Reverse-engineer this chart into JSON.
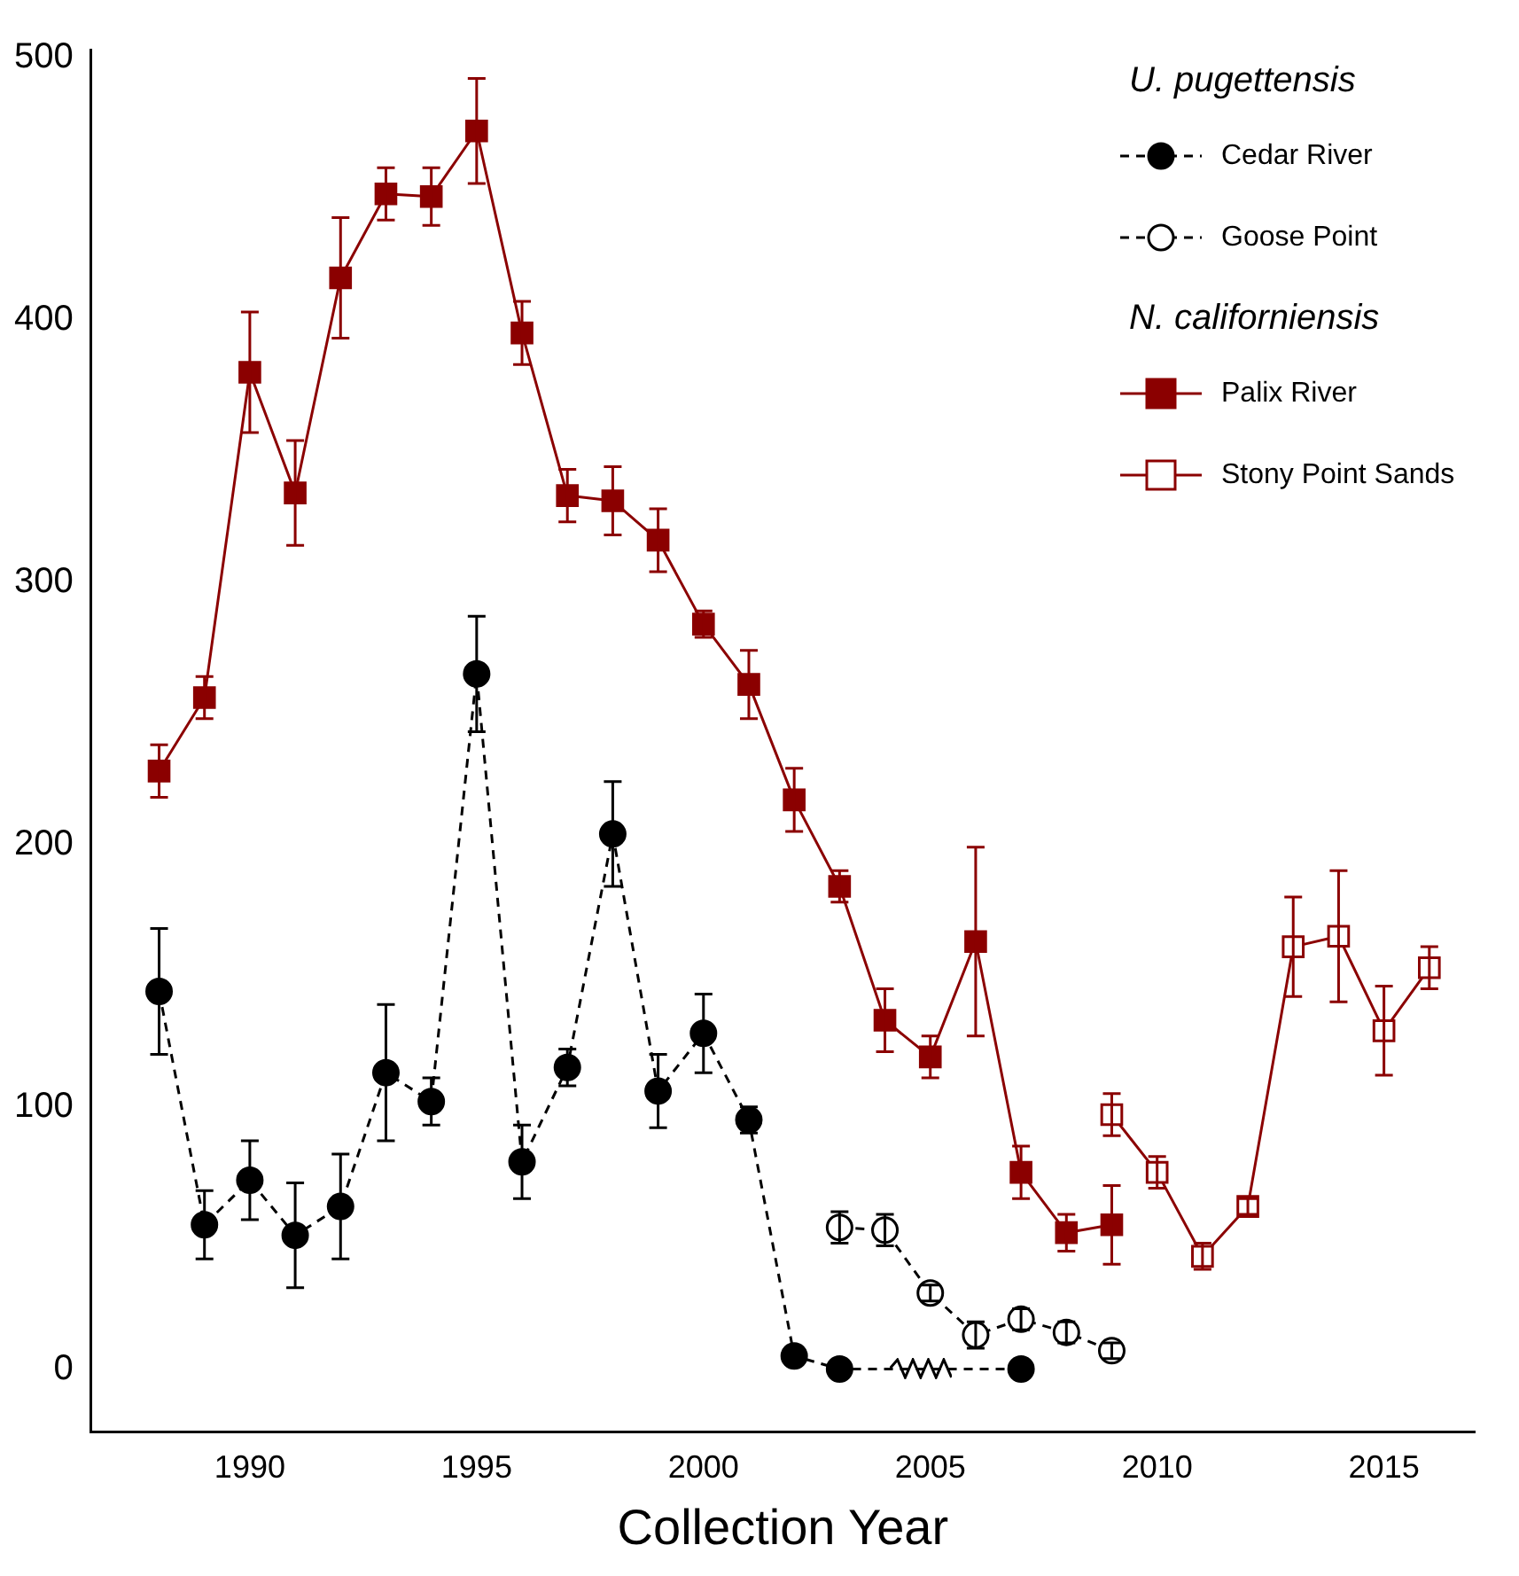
{
  "chart_data": {
    "type": "line",
    "xlabel": "Collection Year",
    "xlim": [
      1986.5,
      2017
    ],
    "xticks": [
      1990,
      1995,
      2000,
      2005,
      2010,
      2015
    ],
    "ylim": [
      -24,
      503
    ],
    "yticks": [
      0,
      100,
      200,
      300,
      400,
      500
    ],
    "grid": false,
    "legend": "top right",
    "annotations": [
      "U. pugettensis",
      "N. californiensis"
    ],
    "series": [
      {
        "name": "Cedar River",
        "color": "#000000",
        "marker": "circle",
        "line_style": "dashed",
        "x": [
          1988,
          1989,
          1990,
          1991,
          1992,
          1993,
          1994,
          1995,
          1996,
          1997,
          1998,
          1999,
          2000,
          2001,
          2002,
          2003,
          2007
        ],
        "values": [
          144,
          55,
          72,
          51,
          62,
          113,
          102,
          265,
          79,
          115,
          204,
          106,
          128,
          95,
          5,
          0,
          0
        ],
        "errors": [
          24,
          13,
          15,
          20,
          20,
          26,
          9,
          22,
          14,
          7,
          20,
          14,
          15,
          5,
          null,
          null,
          null
        ]
      },
      {
        "name": "Goose Point",
        "color": "#000000",
        "marker": "circle-open",
        "line_style": "dashed",
        "x": [
          2003,
          2004,
          2005,
          2006,
          2007,
          2008,
          2009
        ],
        "values": [
          54,
          53,
          29,
          13,
          19,
          14,
          7
        ],
        "errors": [
          6,
          6,
          3,
          5,
          4,
          4,
          3
        ]
      },
      {
        "name": "Palix River",
        "color": "#8b0000",
        "marker": "square",
        "line_style": "solid",
        "x": [
          1988,
          1989,
          1990,
          1991,
          1992,
          1993,
          1994,
          1995,
          1996,
          1997,
          1998,
          1999,
          2000,
          2001,
          2002,
          2003,
          2004,
          2005,
          2006,
          2007,
          2008,
          2009
        ],
        "values": [
          228,
          256,
          380,
          334,
          416,
          448,
          447,
          472,
          395,
          333,
          331,
          316,
          284,
          261,
          217,
          184,
          133,
          119,
          163,
          75,
          52,
          55
        ],
        "errors": [
          10,
          8,
          23,
          20,
          23,
          10,
          11,
          20,
          12,
          10,
          13,
          12,
          5,
          13,
          12,
          6,
          12,
          8,
          36,
          10,
          7,
          15
        ]
      },
      {
        "name": "Stony Point Sands",
        "color": "#8b0000",
        "marker": "square-open",
        "line_style": "solid",
        "x": [
          2009,
          2010,
          2011,
          2012,
          2013,
          2014,
          2015,
          2016
        ],
        "values": [
          97,
          75,
          43,
          62,
          161,
          165,
          129,
          153
        ],
        "errors": [
          8,
          6,
          5,
          3,
          19,
          25,
          17,
          8
        ]
      }
    ]
  }
}
